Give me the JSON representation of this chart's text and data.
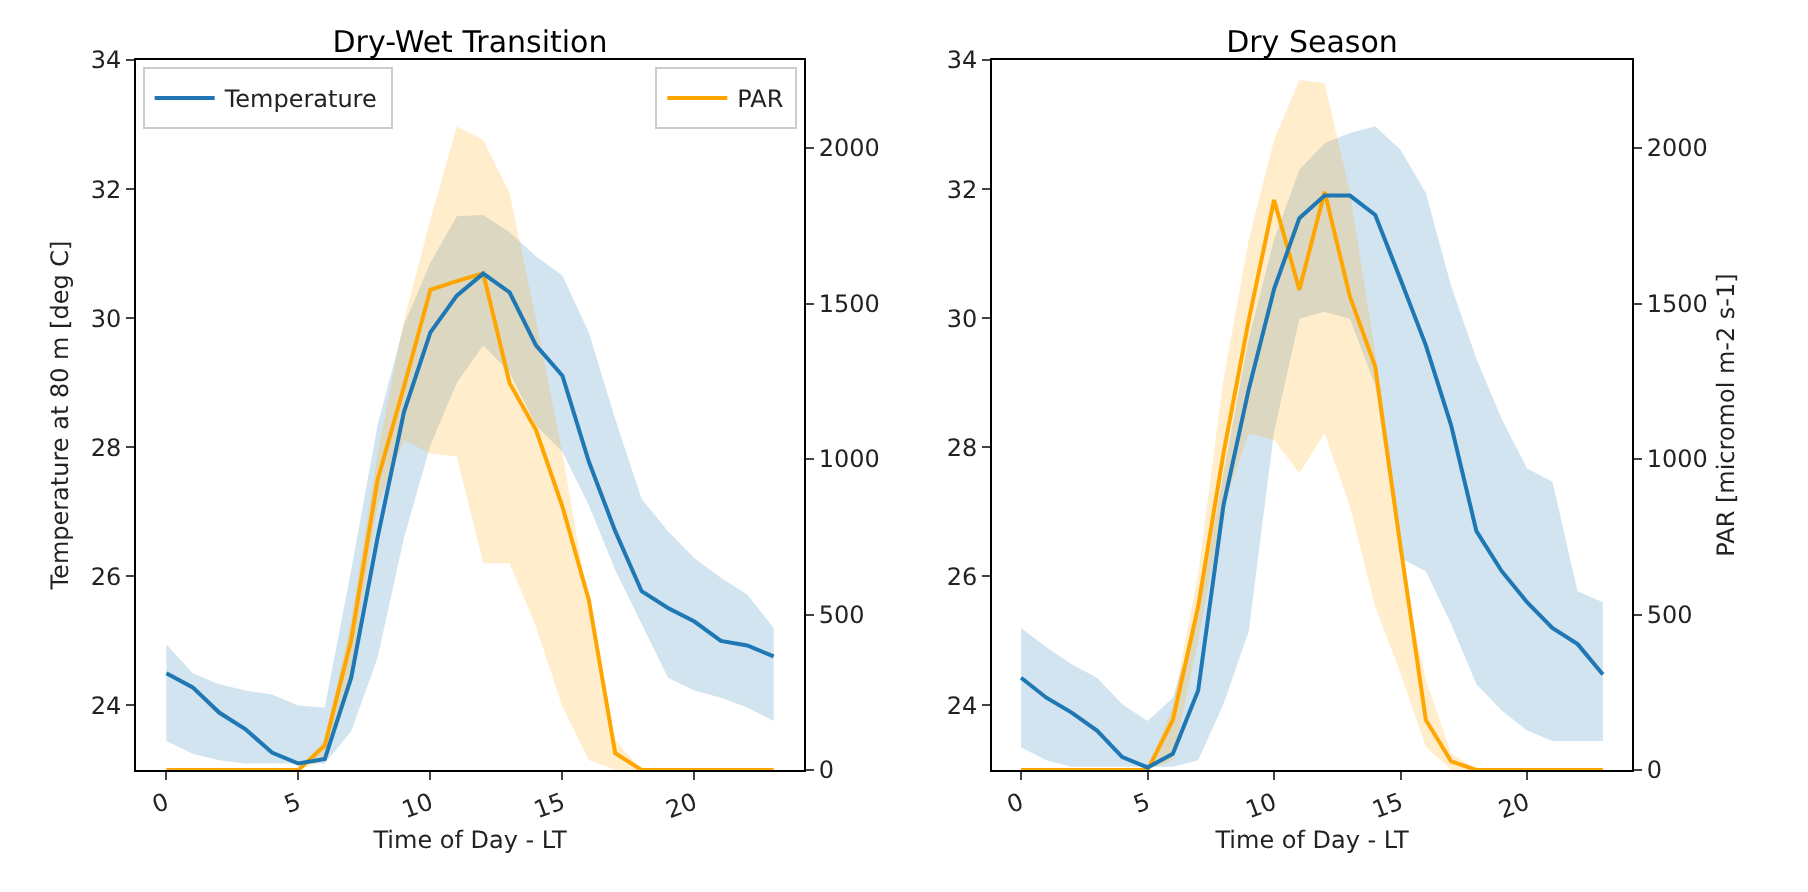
{
  "chart_data": [
    {
      "type": "line",
      "title": "Dry-Wet Transition",
      "xlabel": "Time of Day - LT",
      "ylabel": "Temperature at 80 m [deg C]",
      "legend": "top",
      "x": [
        0,
        1,
        2,
        3,
        4,
        5,
        6,
        7,
        8,
        9,
        10,
        11,
        12,
        13,
        14,
        15,
        16,
        17,
        18,
        19,
        20,
        21,
        22,
        23
      ],
      "xlim": [
        -1.15,
        24.15
      ],
      "xticks": [
        0,
        5,
        10,
        15,
        20
      ],
      "ylim": [
        23,
        34
      ],
      "yticks": [
        24,
        26,
        28,
        30,
        32,
        34
      ],
      "y2lim": [
        0,
        2283
      ],
      "y2ticks": [
        0,
        500,
        1000,
        1500,
        2000
      ],
      "series": [
        {
          "name": "Temperature",
          "color": "#1f77b4",
          "axis": "y",
          "values": [
            24.5,
            24.28,
            23.89,
            23.63,
            23.27,
            23.1,
            23.17,
            24.43,
            26.6,
            28.55,
            29.78,
            30.35,
            30.69,
            30.4,
            29.58,
            29.11,
            27.78,
            26.7,
            25.77,
            25.51,
            25.3,
            25.0,
            24.93,
            24.76
          ],
          "lower": [
            23.45,
            23.25,
            23.15,
            23.1,
            23.1,
            23.1,
            23.1,
            23.6,
            24.74,
            26.6,
            28.03,
            29.0,
            29.58,
            29.16,
            28.34,
            27.93,
            27.1,
            26.1,
            25.26,
            24.43,
            24.23,
            24.12,
            23.97,
            23.76
          ],
          "upper": [
            24.95,
            24.5,
            24.33,
            24.23,
            24.17,
            24.0,
            23.97,
            26.1,
            28.34,
            29.9,
            30.86,
            31.58,
            31.6,
            31.33,
            30.96,
            30.66,
            29.78,
            28.44,
            27.2,
            26.7,
            26.28,
            25.98,
            25.72,
            25.2
          ]
        },
        {
          "name": "PAR",
          "color": "#ffa500",
          "axis": "y2",
          "values": [
            0,
            0,
            0,
            0,
            0,
            0,
            79,
            418,
            933,
            1233,
            1544,
            1572,
            1597,
            1244,
            1093,
            847,
            547,
            54,
            0,
            0,
            0,
            0,
            0,
            0
          ],
          "lower": [
            0,
            0,
            0,
            0,
            0,
            0,
            32,
            311,
            847,
            1061,
            1018,
            1008,
            665,
            665,
            461,
            204,
            32,
            0,
            0,
            0,
            0,
            0,
            0,
            0
          ],
          "upper": [
            0,
            0,
            0,
            0,
            0,
            0,
            96,
            482,
            1018,
            1447,
            1769,
            2069,
            2026,
            1855,
            1447,
            1018,
            525,
            96,
            0,
            0,
            0,
            0,
            0,
            0
          ]
        }
      ]
    },
    {
      "type": "line",
      "title": "Dry Season",
      "xlabel": "Time of Day - LT",
      "y2label": "PAR [micromol m-2 s-1]",
      "x": [
        0,
        1,
        2,
        3,
        4,
        5,
        6,
        7,
        8,
        9,
        10,
        11,
        12,
        13,
        14,
        15,
        16,
        17,
        18,
        19,
        20,
        21,
        22,
        23
      ],
      "xlim": [
        -1.15,
        24.15
      ],
      "xticks": [
        0,
        5,
        10,
        15,
        20
      ],
      "ylim": [
        23,
        34
      ],
      "yticks": [
        24,
        26,
        28,
        30,
        32,
        34
      ],
      "y2lim": [
        0,
        2283
      ],
      "y2ticks": [
        0,
        500,
        1000,
        1500,
        2000
      ],
      "series": [
        {
          "color": "#1f77b4",
          "axis": "y",
          "values": [
            24.43,
            24.12,
            23.89,
            23.61,
            23.2,
            23.04,
            23.25,
            24.23,
            27.1,
            28.9,
            30.45,
            31.55,
            31.9,
            31.9,
            31.6,
            30.6,
            29.58,
            28.34,
            26.7,
            26.08,
            25.6,
            25.2,
            24.95,
            24.48
          ],
          "lower": [
            23.35,
            23.15,
            23.05,
            23.05,
            23.05,
            23.05,
            23.05,
            23.15,
            24.02,
            25.15,
            28.24,
            29.99,
            30.1,
            29.99,
            28.96,
            26.28,
            26.08,
            25.26,
            24.33,
            23.92,
            23.61,
            23.45,
            23.45,
            23.45
          ],
          "upper": [
            25.2,
            24.9,
            24.64,
            24.43,
            24.02,
            23.76,
            24.12,
            25.4,
            27.6,
            29.68,
            31.22,
            32.3,
            32.71,
            32.87,
            32.97,
            32.61,
            31.94,
            30.5,
            29.37,
            28.44,
            27.67,
            27.47,
            25.77,
            25.6
          ]
        },
        {
          "color": "#ffa500",
          "axis": "y2",
          "values": [
            0,
            0,
            0,
            0,
            0,
            0,
            161,
            525,
            1018,
            1447,
            1833,
            1544,
            1859,
            1522,
            1297,
            718,
            161,
            28,
            0,
            0,
            0,
            0,
            0,
            0
          ],
          "lower": [
            0,
            0,
            0,
            0,
            0,
            0,
            32,
            418,
            847,
            1083,
            1061,
            954,
            1083,
            847,
            525,
            311,
            75,
            0,
            0,
            0,
            0,
            0,
            0,
            0
          ],
          "upper": [
            0,
            0,
            0,
            0,
            0,
            0,
            204,
            632,
            1254,
            1704,
            2026,
            2219,
            2208,
            1855,
            1340,
            675,
            289,
            54,
            0,
            0,
            0,
            0,
            0,
            0
          ]
        }
      ]
    }
  ]
}
